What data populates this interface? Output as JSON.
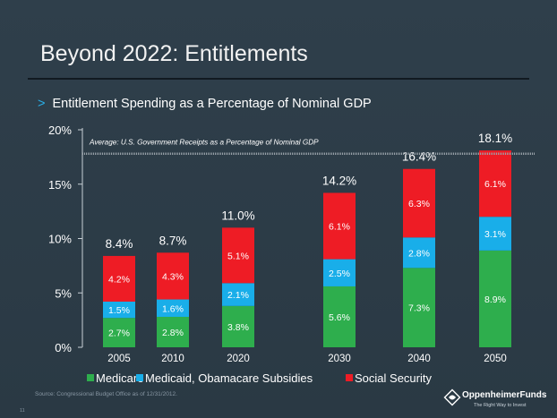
{
  "slide": {
    "title": "Beyond 2022: Entitlements",
    "subtitle": "Entitlement Spending as a Percentage of Nominal GDP",
    "source": "Source: Congressional Budget Office as of 12/31/2012.",
    "page_number": "11",
    "logo": {
      "name": "OppenheimerFunds",
      "tagline": "The Right Way to Invest"
    }
  },
  "chart_data": {
    "type": "bar",
    "stacked": true,
    "categories": [
      "2005",
      "2010",
      "2020",
      "2030",
      "2040",
      "2050"
    ],
    "series": [
      {
        "name": "Medicare",
        "color": "#2eae4d",
        "values": [
          2.7,
          2.8,
          3.8,
          5.6,
          7.3,
          8.9
        ],
        "labels": [
          "2.7%",
          "2.8%",
          "3.8%",
          "5.6%",
          "7.3%",
          "8.9%"
        ]
      },
      {
        "name": "Medicaid, Obamacare Subsidies",
        "color": "#19aee9",
        "values": [
          1.5,
          1.6,
          2.1,
          2.5,
          2.8,
          3.1
        ],
        "labels": [
          "1.5%",
          "1.6%",
          "2.1%",
          "2.5%",
          "2.8%",
          "3.1%"
        ]
      },
      {
        "name": "Social Security",
        "color": "#ee1c25",
        "values": [
          4.2,
          4.3,
          5.1,
          6.1,
          6.3,
          6.1
        ],
        "labels": [
          "4.2%",
          "4.3%",
          "5.1%",
          "6.1%",
          "6.3%",
          "6.1%"
        ]
      }
    ],
    "totals": [
      "8.4%",
      "8.7%",
      "11.0%",
      "14.2%",
      "16.4%",
      "18.1%"
    ],
    "total_values": [
      8.4,
      8.7,
      11.0,
      14.2,
      16.4,
      18.1
    ],
    "ylim": [
      0,
      20
    ],
    "yticks": [
      0,
      5,
      10,
      15,
      20
    ],
    "ytick_labels": [
      "0%",
      "5%",
      "10%",
      "15%",
      "20%"
    ],
    "reference_line": {
      "value": 17.8,
      "label": "Average: U.S. Government Receipts as a Percentage of Nominal GDP"
    },
    "legend_position": "bottom",
    "grid": false
  }
}
